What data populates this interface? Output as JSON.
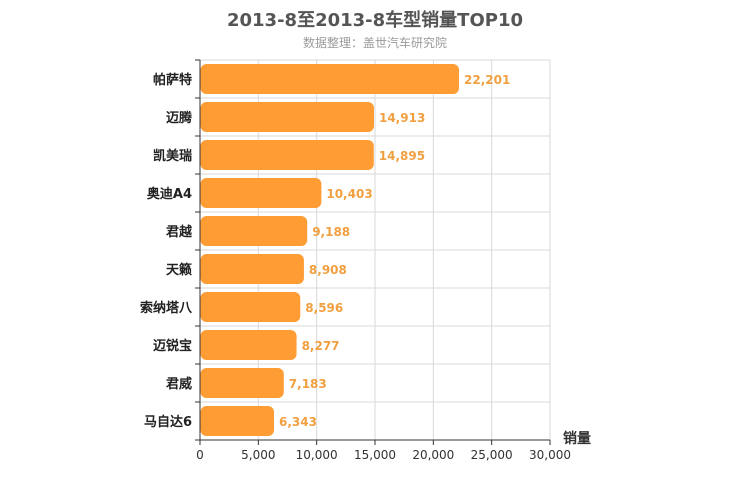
{
  "chart_data": {
    "type": "bar",
    "orientation": "horizontal",
    "title": "2013-8至2013-8车型销量TOP10",
    "subtitle": "数据整理：盖世汽车研究院",
    "xlabel": "销量",
    "ylabel": "",
    "xlim": [
      0,
      30000
    ],
    "x_ticks": [
      "0",
      "5,000",
      "10,000",
      "15,000",
      "20,000",
      "25,000",
      "30,000"
    ],
    "tick_values": [
      0,
      5000,
      10000,
      15000,
      20000,
      25000,
      30000
    ],
    "categories": [
      "帕萨特",
      "迈腾",
      "凯美瑞",
      "奥迪A4",
      "君越",
      "天籁",
      "索纳塔八",
      "迈锐宝",
      "君威",
      "马自达6"
    ],
    "values": [
      22201,
      14913,
      14895,
      10403,
      9188,
      8908,
      8596,
      8277,
      7183,
      6343
    ],
    "value_labels": [
      "22,201",
      "14,913",
      "14,895",
      "10,403",
      "9,188",
      "8,908",
      "8,596",
      "8,277",
      "7,183",
      "6,343"
    ],
    "grid": true,
    "colors": {
      "bar": "#ff9c34",
      "value_label": "#f0a040",
      "grid": "#d9d9d9",
      "axis": "#333333",
      "category_label": "#222222",
      "title": "#555555",
      "subtitle": "#9a9a9a"
    }
  }
}
